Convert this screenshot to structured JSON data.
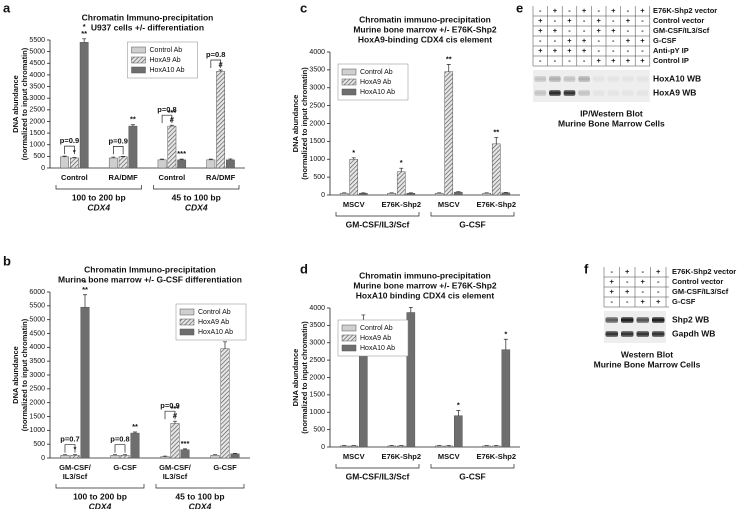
{
  "panel_labels": [
    "a",
    "b",
    "c",
    "d",
    "e",
    "f"
  ],
  "chart_data": [
    {
      "type": "bar",
      "title": [
        "Chromatin Immuno-precipitation",
        "U937 cells +/- differentiation"
      ],
      "ylabel": [
        "DNA abundance",
        "(normalized to input chromatin)"
      ],
      "categories": [
        "Control",
        "RA/DMF",
        "Control",
        "RA/DMF"
      ],
      "group_labels": [
        [
          "100 to 200 bp",
          "CDX4"
        ],
        [
          "45 to 100 bp",
          "CDX4"
        ]
      ],
      "ylim": [
        0,
        5500
      ],
      "yticks": [
        0,
        500,
        1000,
        1500,
        2000,
        2500,
        3000,
        3500,
        4000,
        4500,
        5000,
        5500
      ],
      "legend": "upper center",
      "series": [
        {
          "name": "Control Ab",
          "color": "#cfcfcf",
          "hatch": false,
          "values": [
            480,
            430,
            350,
            350
          ],
          "errors": [
            30,
            40,
            30,
            30
          ],
          "annotations": [
            null,
            null,
            null,
            null
          ]
        },
        {
          "name": "HoxA9 Ab",
          "color": "#9a9a9a",
          "hatch": true,
          "values": [
            430,
            480,
            1800,
            4150
          ],
          "errors": [
            20,
            20,
            40,
            60
          ],
          "annotations": [
            [
              "*"
            ],
            null,
            [
              "***",
              "#"
            ],
            [
              "#"
            ]
          ]
        },
        {
          "name": "HoxA10 Ab",
          "color": "#6e6e6e",
          "hatch": false,
          "values": [
            5400,
            1800,
            350,
            350
          ],
          "errors": [
            150,
            60,
            30,
            40
          ],
          "annotations": [
            [
              "*",
              "**"
            ],
            [
              "**"
            ],
            [
              "***"
            ],
            null
          ]
        }
      ],
      "brackets": [
        {
          "text": "p=0.9",
          "category": 0
        },
        {
          "text": "p=0.9",
          "category": 1
        },
        {
          "text": "p=0.8",
          "category": 2
        },
        {
          "text": "p=0.8",
          "category": 3
        }
      ]
    },
    {
      "type": "bar",
      "title": [
        "Chromatin Immuno-precipitation",
        "Murine bone marrow +/- G-CSF differentiation"
      ],
      "ylabel": [
        "DNA abundance",
        "(normalized to input chromatin)"
      ],
      "categories": [
        [
          "GM-CSF/",
          "IL3/Scf"
        ],
        [
          "G-CSF"
        ],
        [
          "GM-CSF/",
          "IL3/Scf"
        ],
        [
          "G-CSF"
        ]
      ],
      "group_labels": [
        [
          "100 to 200 bp",
          "CDX4"
        ],
        [
          "45 to 100 bp",
          "CDX4"
        ]
      ],
      "ylim": [
        0,
        6000
      ],
      "yticks": [
        0,
        500,
        1000,
        1500,
        2000,
        2500,
        3000,
        3500,
        4000,
        4500,
        5000,
        5500,
        6000
      ],
      "legend": "upper right",
      "series": [
        {
          "name": "Control Ab",
          "color": "#cfcfcf",
          "hatch": false,
          "values": [
            100,
            100,
            50,
            100
          ],
          "errors": [
            20,
            20,
            20,
            20
          ],
          "annotations": [
            null,
            null,
            null,
            null
          ]
        },
        {
          "name": "HoxA9 Ab",
          "color": "#9a9a9a",
          "hatch": true,
          "values": [
            100,
            100,
            1250,
            3950
          ],
          "errors": [
            20,
            20,
            80,
            250
          ],
          "annotations": [
            [
              "*"
            ],
            null,
            [
              "***",
              "#"
            ],
            [
              "#"
            ]
          ]
        },
        {
          "name": "HoxA10 Ab",
          "color": "#6e6e6e",
          "hatch": false,
          "values": [
            5450,
            900,
            300,
            150
          ],
          "errors": [
            450,
            40,
            30,
            20
          ],
          "annotations": [
            [
              "*",
              "**"
            ],
            [
              "**"
            ],
            [
              "***"
            ],
            null
          ]
        }
      ],
      "brackets": [
        {
          "text": "p=0.7",
          "category": 0
        },
        {
          "text": "p=0.8",
          "category": 1
        },
        {
          "text": "p=0.9",
          "category": 2
        },
        {
          "text": "p=0.8",
          "category": 3
        }
      ]
    },
    {
      "type": "bar",
      "title": [
        "Chromatin immuno-precipitation",
        "Murine bone marrow +/- E76K-Shp2",
        "HoxA9-binding CDX4 cis element"
      ],
      "ylabel": [
        "DNA abundance",
        "(normalized to input chromatin)"
      ],
      "categories": [
        "MSCV",
        "E76K-Shp2",
        "MSCV",
        "E76K-Shp2"
      ],
      "group_labels": [
        [
          "GM-CSF/IL3/Scf"
        ],
        [
          "G-CSF"
        ]
      ],
      "ylim": [
        0,
        4000
      ],
      "yticks": [
        0,
        500,
        1000,
        1500,
        2000,
        2500,
        3000,
        3500,
        4000
      ],
      "legend": "upper left",
      "series": [
        {
          "name": "Control Ab",
          "color": "#cfcfcf",
          "hatch": false,
          "values": [
            50,
            50,
            50,
            50
          ],
          "errors": [
            10,
            10,
            10,
            10
          ],
          "annotations": [
            null,
            null,
            null,
            null
          ]
        },
        {
          "name": "HoxA9 Ab",
          "color": "#9a9a9a",
          "hatch": true,
          "values": [
            1000,
            650,
            3450,
            1430
          ],
          "errors": [
            40,
            100,
            200,
            180
          ],
          "annotations": [
            [
              "*"
            ],
            [
              "*"
            ],
            [
              "**"
            ],
            [
              "**"
            ]
          ]
        },
        {
          "name": "HoxA10 Ab",
          "color": "#6e6e6e",
          "hatch": false,
          "values": [
            50,
            50,
            80,
            60
          ],
          "errors": [
            10,
            10,
            10,
            10
          ],
          "annotations": [
            null,
            null,
            null,
            null
          ]
        }
      ],
      "brackets": []
    },
    {
      "type": "bar",
      "title": [
        "Chromatin immuno-precipitation",
        "Murine bone marrow +/- E76K-Shp2",
        "HoxA10 binding CDX4 cis element"
      ],
      "ylabel": [
        "DNA abundance",
        "(normalized to input chromatin)"
      ],
      "categories": [
        "MSCV",
        "E76K-Shp2",
        "MSCV",
        "E76K-Shp2"
      ],
      "group_labels": [
        [
          "GM-CSF/IL3/Scf"
        ],
        [
          "G-CSF"
        ]
      ],
      "ylim": [
        0,
        4000
      ],
      "yticks": [
        0,
        500,
        1000,
        1500,
        2000,
        2500,
        3000,
        3500,
        4000
      ],
      "legend": "upper left",
      "series": [
        {
          "name": "Control Ab",
          "color": "#cfcfcf",
          "hatch": false,
          "values": [
            30,
            30,
            30,
            30
          ],
          "errors": [
            10,
            10,
            10,
            10
          ],
          "annotations": [
            null,
            null,
            null,
            null
          ]
        },
        {
          "name": "HoxA9 Ab",
          "color": "#9a9a9a",
          "hatch": true,
          "values": [
            30,
            30,
            30,
            30
          ],
          "errors": [
            10,
            10,
            10,
            10
          ],
          "annotations": [
            null,
            null,
            null,
            null
          ]
        },
        {
          "name": "HoxA10 Ab",
          "color": "#6e6e6e",
          "hatch": false,
          "values": [
            3550,
            3870,
            900,
            2800
          ],
          "errors": [
            250,
            150,
            150,
            300
          ],
          "annotations": [
            null,
            null,
            [
              "*"
            ],
            [
              "*"
            ]
          ]
        }
      ],
      "brackets": []
    }
  ],
  "blot_panels": [
    {
      "rows": [
        {
          "label": "E76K-Shp2 vector",
          "signs": [
            "-",
            "+",
            "-",
            "+",
            "-",
            "+",
            "-",
            "+"
          ]
        },
        {
          "label": "Control vector",
          "signs": [
            "+",
            "-",
            "+",
            "-",
            "+",
            "-",
            "+",
            "-"
          ]
        },
        {
          "label": "GM-CSF/IL3/Scf",
          "signs": [
            "+",
            "+",
            "-",
            "-",
            "+",
            "+",
            "-",
            "-"
          ]
        },
        {
          "label": "G-CSF",
          "signs": [
            "-",
            "-",
            "+",
            "+",
            "-",
            "-",
            "+",
            "+"
          ]
        },
        {
          "label": "Anti-pY IP",
          "signs": [
            "+",
            "+",
            "+",
            "+",
            "-",
            "-",
            "-",
            "-"
          ]
        },
        {
          "label": "Control IP",
          "signs": [
            "-",
            "-",
            "-",
            "-",
            "+",
            "+",
            "+",
            "+"
          ]
        }
      ],
      "blots": [
        "HoxA10 WB",
        "HoxA9 WB"
      ],
      "caption": [
        "IP/Western Blot",
        "Murine Bone Marrow Cells"
      ]
    },
    {
      "rows": [
        {
          "label": "E76K-Shp2 vector",
          "signs": [
            "-",
            "+",
            "-",
            "+"
          ]
        },
        {
          "label": "Control vector",
          "signs": [
            "+",
            "-",
            "+",
            "-"
          ]
        },
        {
          "label": "GM-CSF/IL3/Scf",
          "signs": [
            "+",
            "+",
            "-",
            "-"
          ]
        },
        {
          "label": "G-CSF",
          "signs": [
            "-",
            "-",
            "+",
            "+"
          ]
        }
      ],
      "blots": [
        "Shp2 WB",
        "Gapdh WB"
      ],
      "caption": [
        "Western Blot",
        "Murine Bone Marrow Cells"
      ]
    }
  ]
}
